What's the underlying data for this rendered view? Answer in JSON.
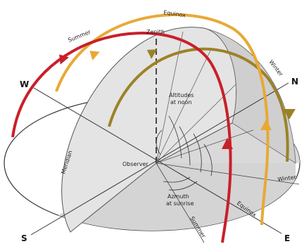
{
  "directions": {
    "north": "N",
    "south": "S",
    "east": "E",
    "west": "W"
  },
  "labels": {
    "zenith": "Zenith",
    "observer": "Observer",
    "meridian": "Meridian",
    "altitudes_line1": "Altitudes",
    "altitudes_line2": "at noon",
    "azimuth_line1": "Azmuth",
    "azimuth_line2": "at sunrise"
  },
  "paths": {
    "summer": "Summer",
    "equinox": "Equinox",
    "winter": "Winter"
  },
  "colors": {
    "summer": "#c8202a",
    "equinox": "#e8a934",
    "winter": "#9c8227",
    "disc_light": "#ffffff",
    "disc_shade": "#d0d0d0",
    "dome": "#e6e6e6"
  }
}
